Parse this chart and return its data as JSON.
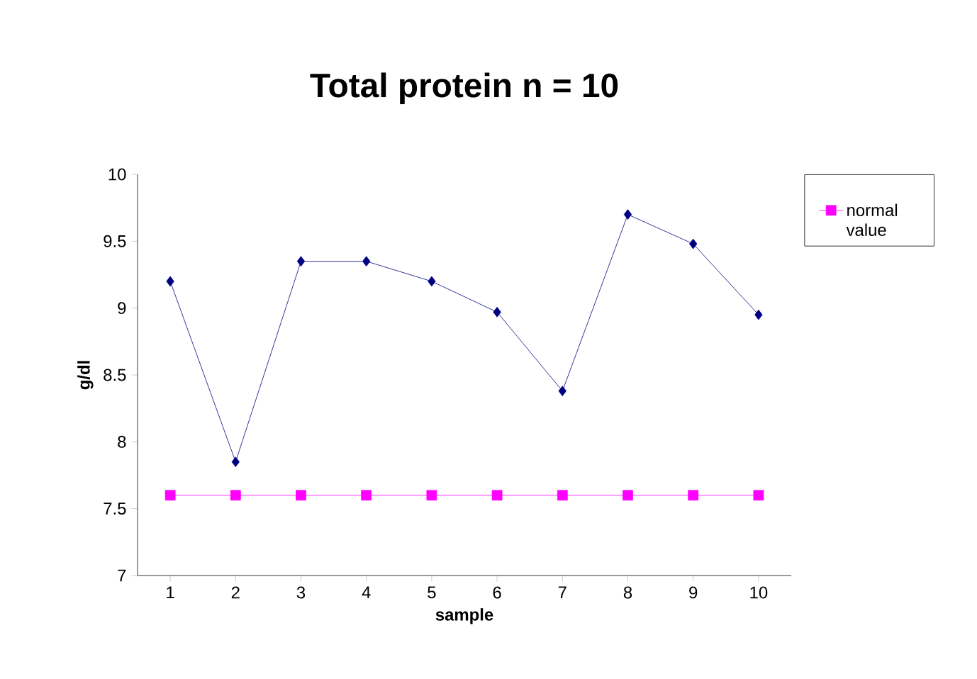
{
  "chart_data": {
    "type": "line",
    "title": "Total protein n = 10",
    "xlabel": "sample",
    "ylabel": "g/dl",
    "categories": [
      "1",
      "2",
      "3",
      "4",
      "5",
      "6",
      "7",
      "8",
      "9",
      "10"
    ],
    "series": [
      {
        "color": "#000080",
        "marker": "diamond",
        "values": [
          9.2,
          7.85,
          9.35,
          9.35,
          9.2,
          8.97,
          8.38,
          9.7,
          9.48,
          8.95
        ]
      },
      {
        "name": "normal value",
        "color": "#ff00ff",
        "marker": "square",
        "values": [
          7.6,
          7.6,
          7.6,
          7.6,
          7.6,
          7.6,
          7.6,
          7.6,
          7.6,
          7.6
        ]
      }
    ],
    "ylim": [
      7,
      10
    ],
    "yticks": [
      7,
      7.5,
      8,
      8.5,
      9,
      9.5,
      10
    ],
    "grid": false,
    "legend": "right",
    "line_style": "solid"
  }
}
